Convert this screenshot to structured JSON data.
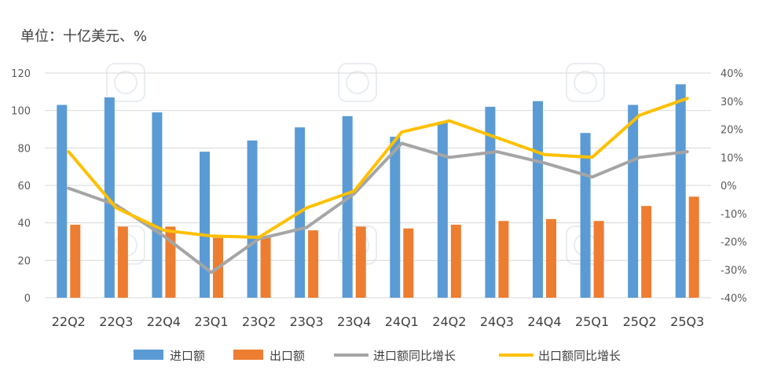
{
  "chart_data": {
    "type": "bar+line",
    "unit_label": "单位：十亿美元、%",
    "categories": [
      "22Q2",
      "22Q3",
      "22Q4",
      "23Q1",
      "23Q2",
      "23Q3",
      "23Q4",
      "24Q1",
      "24Q2",
      "24Q3",
      "24Q4",
      "25Q1",
      "25Q2",
      "25Q3"
    ],
    "y_left": {
      "ylim": [
        0,
        120
      ],
      "ticks": [
        "0",
        "20",
        "40",
        "60",
        "80",
        "100",
        "120"
      ]
    },
    "y_right": {
      "ylim": [
        -40,
        40
      ],
      "ticks": [
        "-40%",
        "-30%",
        "-20%",
        "-10%",
        "0%",
        "10%",
        "20%",
        "30%",
        "40%"
      ]
    },
    "series": [
      {
        "name": "进口额",
        "kind": "bar",
        "axis": "left",
        "color": "#5B9BD5",
        "values": [
          103,
          107,
          99,
          78,
          84,
          91,
          97,
          86,
          94,
          102,
          105,
          88,
          103,
          114
        ]
      },
      {
        "name": "出口额",
        "kind": "bar",
        "axis": "left",
        "color": "#ED7D31",
        "values": [
          39,
          38,
          38,
          32,
          32,
          36,
          38,
          37,
          39,
          41,
          42,
          41,
          49,
          54
        ]
      },
      {
        "name": "进口额同比增长",
        "kind": "line",
        "axis": "right",
        "color": "#A5A5A5",
        "values": [
          -1,
          -7,
          -18,
          -31,
          -19,
          -15,
          -3,
          15,
          10,
          12,
          8,
          3,
          10,
          12
        ]
      },
      {
        "name": "出口额同比增长",
        "kind": "line",
        "axis": "right",
        "color": "#FFC000",
        "values": [
          12,
          -8,
          -16,
          -18,
          -18.5,
          -8,
          -2,
          19,
          23,
          17,
          11,
          10,
          25,
          31
        ]
      }
    ]
  }
}
